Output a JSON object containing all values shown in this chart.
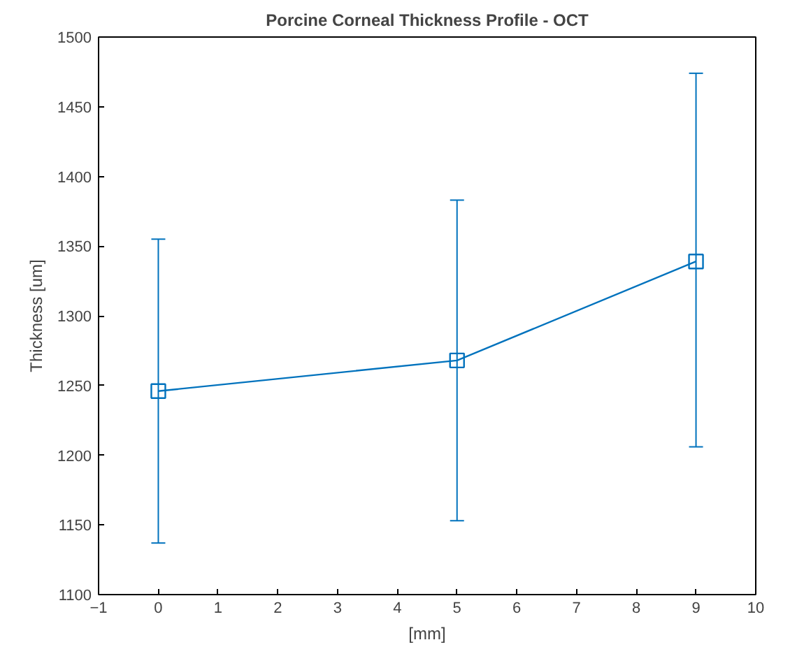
{
  "chart_data": {
    "type": "line",
    "title": "Porcine Corneal Thickness Profile - OCT",
    "xlabel": "[mm]",
    "ylabel": "Thickness [um]",
    "x": [
      0,
      5,
      9
    ],
    "series": [
      {
        "color": "#0072bd",
        "values": [
          1246,
          1268,
          1339
        ],
        "errors": [
          [
            1137,
            1355
          ],
          [
            1153,
            1383
          ],
          [
            1206,
            1474
          ]
        ]
      }
    ],
    "xlim": [
      -1,
      10
    ],
    "xticks": [
      -1,
      0,
      1,
      2,
      3,
      4,
      5,
      6,
      7,
      8,
      9,
      10
    ],
    "ylim": [
      1100,
      1500
    ],
    "yticks": [
      1100,
      1150,
      1200,
      1250,
      1300,
      1350,
      1400,
      1450,
      1500
    ],
    "marker": "square",
    "line_style": "solid",
    "grid": false
  }
}
